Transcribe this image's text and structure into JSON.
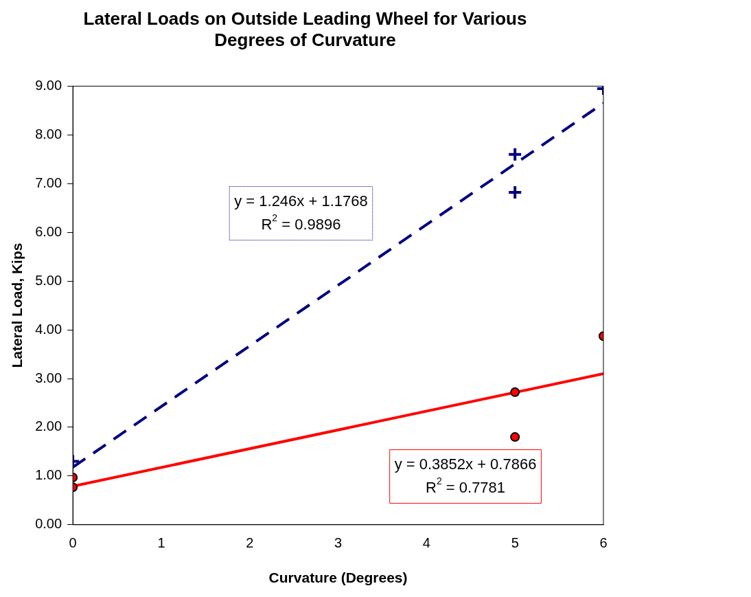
{
  "chart_data": {
    "type": "scatter",
    "title": "Lateral Loads on Outside Leading Wheel for Various Degrees of Curvature",
    "xlabel": "Curvature (Degrees)",
    "ylabel": "Lateral Load, Kips",
    "xlim": [
      0,
      6
    ],
    "xticks": [
      0,
      1,
      2,
      3,
      4,
      5,
      6
    ],
    "ylim": [
      0,
      9
    ],
    "yticks": [
      {
        "value": 0,
        "label": "0.00"
      },
      {
        "value": 1,
        "label": "1.00"
      },
      {
        "value": 2,
        "label": "2.00"
      },
      {
        "value": 3,
        "label": "3.00"
      },
      {
        "value": 4,
        "label": "4.00"
      },
      {
        "value": 5,
        "label": "5.00"
      },
      {
        "value": 6,
        "label": "6.00"
      },
      {
        "value": 7,
        "label": "7.00"
      },
      {
        "value": 8,
        "label": "8.00"
      },
      {
        "value": 9,
        "label": "9.00"
      }
    ],
    "grid": false,
    "legend": false,
    "series": [
      {
        "type": "scatter",
        "color": "#000080",
        "marker": "cross",
        "x": [
          0,
          5,
          5,
          6
        ],
        "values": [
          1.3,
          7.6,
          6.82,
          8.95
        ]
      },
      {
        "type": "scatter",
        "color": "#ff0000",
        "marker": "circle",
        "x": [
          0,
          0,
          5,
          5,
          6
        ],
        "values": [
          0.97,
          0.77,
          2.72,
          1.8,
          3.87
        ]
      },
      {
        "type": "line",
        "color": "#000080",
        "line_style": "dashed",
        "marker": "none",
        "x": [
          0,
          6
        ],
        "values": [
          1.18,
          8.65
        ]
      },
      {
        "type": "line",
        "color": "#ff0000",
        "line_style": "solid",
        "marker": "none",
        "x": [
          0,
          6
        ],
        "values": [
          0.79,
          3.1
        ]
      }
    ],
    "annotations": [
      "y = 1.246x + 1.1768\nR$^{2}$ = 0.9896",
      "y = 0.3852x + 0.7866\nR$^{2}$ = 0.7781"
    ]
  }
}
